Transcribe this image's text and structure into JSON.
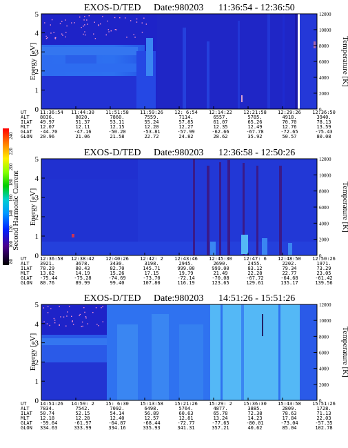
{
  "palette": {
    "deep": "#1e23c8",
    "mid": "#2648e6",
    "bright": "#3a86f2",
    "pale": "#54b8f6",
    "trace": "#7a2a9a",
    "speck": "#ff9ad0"
  },
  "colorbar": {
    "label": "Second Harmonic Current",
    "ticks": [
      "240",
      "220",
      "200",
      "180",
      "160",
      "140",
      "120",
      "100",
      "80"
    ],
    "colors": [
      "#ff0000",
      "#ff7700",
      "#ffdd00",
      "#88ff00",
      "#00d000",
      "#00d0d0",
      "#0088ff",
      "#0022ff",
      "#3a0080",
      "#000000"
    ]
  },
  "chart_data": [
    {
      "type": "heatmap",
      "title": "EXOS-D/TED",
      "date": "Date:980203",
      "time_range": "11:36:54 - 12:36:50",
      "ylabel": "Energy [eV]",
      "ylim": [
        0,
        5
      ],
      "yticks": [
        "5",
        "4",
        "3",
        "2",
        "1",
        "0"
      ],
      "y2label": "Temperature [K]",
      "y2lim": [
        0,
        12000
      ],
      "y2ticks": [
        "12000",
        "10000",
        "8000",
        "6000",
        "4000",
        "2000",
        "0"
      ],
      "ephemeris": {
        "labels": [
          "UT",
          "ALT",
          "ILAT",
          "MLT",
          "GLAT",
          "GLON"
        ],
        "columns": [
          [
            "11:36:54",
            "8036.",
            "49.97",
            "12.07",
            "-44.70",
            "20.96"
          ],
          [
            "11:44:30",
            "8020.",
            "51.37",
            "12.11",
            "-47.16",
            "21.06"
          ],
          [
            "11:51:58",
            "7860.",
            "53.11",
            "12.15",
            "-50.20",
            "21.58"
          ],
          [
            "11:59:26",
            "7559.",
            "55.24",
            "12.20",
            "-53.81",
            "22.72"
          ],
          [
            "12: 6:54",
            "7114.",
            "57.85",
            "12.27",
            "-57.99",
            "24.82"
          ],
          [
            "12:14:22",
            "6557.",
            "61.07",
            "12.35",
            "-62.66",
            "28.62"
          ],
          [
            "12:21:58",
            "5785.",
            "65.26",
            "12.49",
            "-67.78",
            "35.92"
          ],
          [
            "12:29:26",
            "4918.",
            "70.70",
            "12.76",
            "-72.65",
            "50.57"
          ],
          [
            "12:36:50",
            "3940.",
            "78.13",
            "13.59",
            "-75.43",
            "80.08"
          ]
        ]
      }
    },
    {
      "type": "heatmap",
      "title": "EXOS-D/TED",
      "date": "Date:980203",
      "time_range": "12:36:58 - 12:50:26",
      "ylabel": "Energy [eV]",
      "ylim": [
        0,
        5
      ],
      "yticks": [
        "5",
        "4",
        "3",
        "2",
        "1",
        "0"
      ],
      "y2label": "Temperature [K]",
      "y2lim": [
        0,
        12000
      ],
      "y2ticks": [
        "12000",
        "10000",
        "8000",
        "6000",
        "4000",
        "2000",
        "0"
      ],
      "ephemeris": {
        "labels": [
          "UT",
          "ALT",
          "ILAT",
          "MLT",
          "GLAT",
          "GLON"
        ],
        "columns": [
          [
            "12:36:58",
            "3921.",
            "78.29",
            "13.62",
            "-75.44",
            "80.76"
          ],
          [
            "12:38:42",
            "3678.",
            "80.43",
            "14.19",
            "-75.28",
            "89.99"
          ],
          [
            "12:40:26",
            "3430.",
            "82.70",
            "15.26",
            "-74.69",
            "99.40"
          ],
          [
            "12:42: 2",
            "3198.",
            "145.71",
            "17.15",
            "-73.70",
            "107.80"
          ],
          [
            "12:43:46",
            "2945.",
            "999.00",
            "19.79",
            "-72.14",
            "116.19"
          ],
          [
            "12:45:30",
            "2690.",
            "999.00",
            "21.49",
            "-70.08",
            "123.65"
          ],
          [
            "12:47: 6",
            "2455.",
            "83.12",
            "22.28",
            "-67.72",
            "129.61"
          ],
          [
            "12:48:50",
            "2202.",
            "79.34",
            "22.77",
            "-64.68",
            "135.17"
          ],
          [
            "12:50:26",
            "1971.",
            "73.29",
            "23.05",
            "-61.42",
            "139.56"
          ]
        ]
      }
    },
    {
      "type": "heatmap",
      "title": "EXOS-D/TED",
      "date": "Date:980203",
      "time_range": "14:51:26 - 15:51:26",
      "ylabel": "Energy [eV]",
      "ylim": [
        0,
        5
      ],
      "yticks": [
        "5",
        "4",
        "3",
        "2",
        "1",
        "0"
      ],
      "y2label": "Temperature [K]",
      "y2lim": [
        0,
        12000
      ],
      "y2ticks": [
        "12000",
        "10000",
        "8000",
        "6000",
        "4000",
        "2000",
        "0"
      ],
      "ephemeris": {
        "labels": [
          "UT",
          "ALT",
          "ILAT",
          "MLT",
          "GLAT",
          "GLON"
        ],
        "columns": [
          [
            "14:51:26",
            "7834.",
            "50.74",
            "12.18",
            "-59.64",
            "334.63"
          ],
          [
            "14:59: 2",
            "7542.",
            "52.15",
            "12.28",
            "-61.97",
            "333.99"
          ],
          [
            "15: 6:30",
            "7092.",
            "54.14",
            "12.40",
            "-64.87",
            "334.16"
          ],
          [
            "15:13:58",
            "6498.",
            "56.89",
            "12.57",
            "-68.44",
            "335.93"
          ],
          [
            "15:21:26",
            "5764.",
            "60.63",
            "12.81",
            "-72.77",
            "341.31"
          ],
          [
            "15:29: 2",
            "4877.",
            "65.78",
            "13.24",
            "-77.65",
            "357.21"
          ],
          [
            "15:36:30",
            "3885.",
            "72.38",
            "14.23",
            "-80.01",
            "40.62"
          ],
          [
            "15:43:58",
            "2809.",
            "78.63",
            "17.84",
            "-73.04",
            "85.04"
          ],
          [
            "15:51:26",
            "1728.",
            "71.13",
            "22.03",
            "-57.35",
            "102.78"
          ]
        ]
      }
    }
  ]
}
